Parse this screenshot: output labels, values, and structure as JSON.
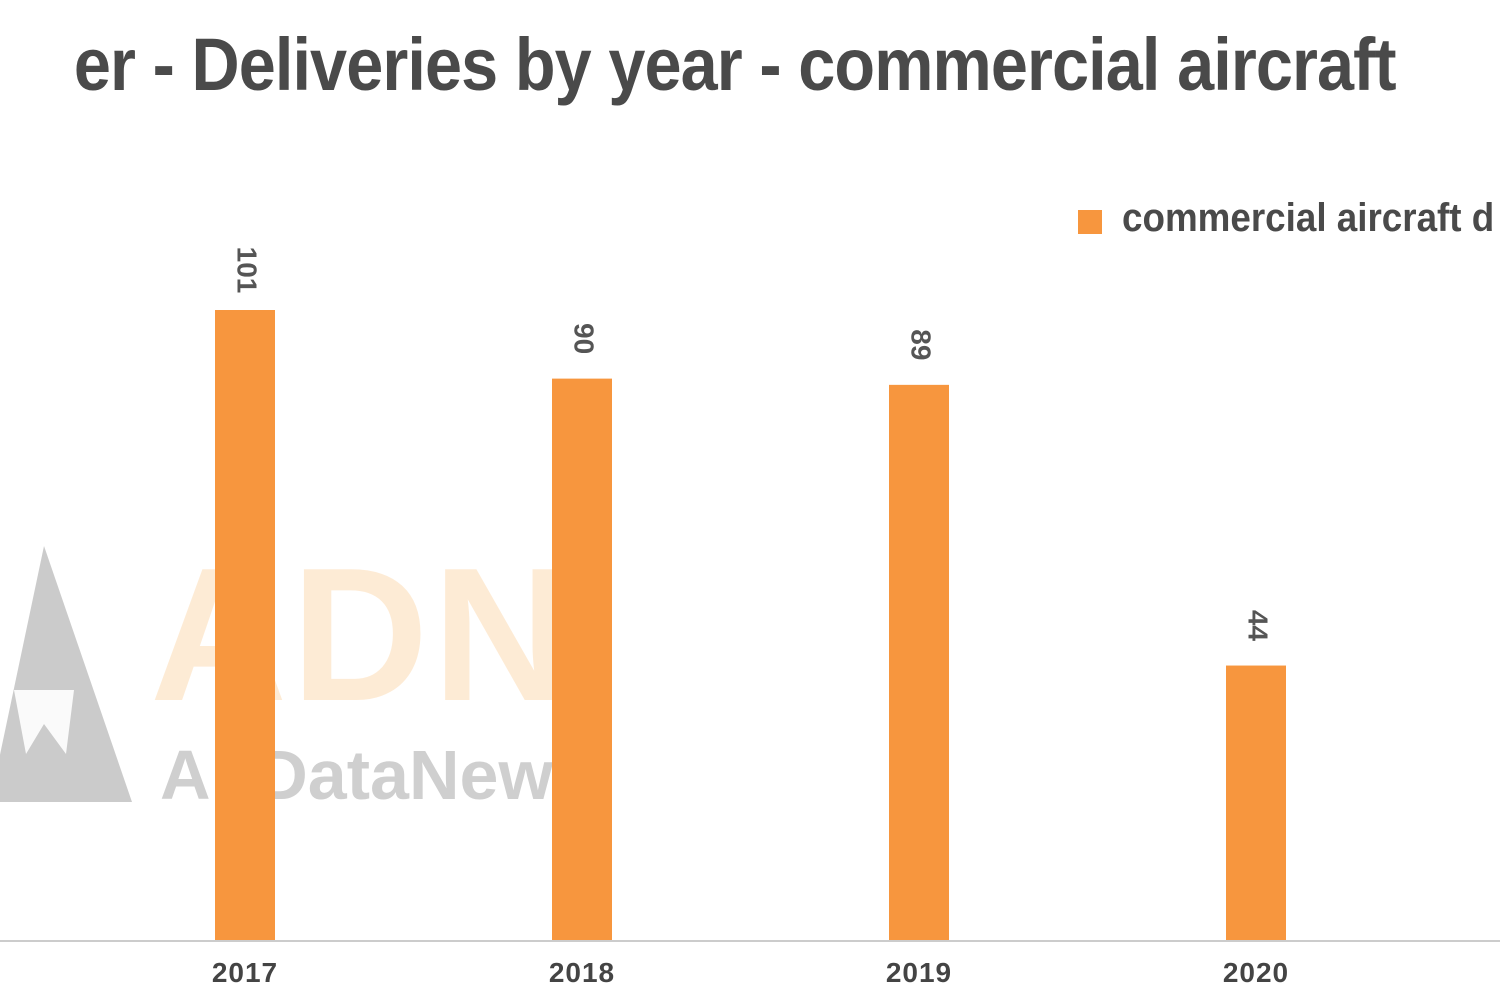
{
  "colors": {
    "bar": "#f7963e",
    "title": "#4a4a4a",
    "axis": "#cccccc",
    "tick_text": "#444444",
    "data_label": "#555555"
  },
  "watermark": {
    "logo": "airdatanews-logo",
    "brand": "ADN",
    "brand_sub": "AirDataNews"
  },
  "chart_data": {
    "type": "bar",
    "title": "er - Deliveries by year - commercial aircraft",
    "categories": [
      "2017",
      "2018",
      "2019",
      "2020"
    ],
    "series": [
      {
        "name": "commercial aircraft d",
        "values": [
          101,
          90,
          89,
          44
        ]
      }
    ],
    "data_labels": [
      "101",
      "90",
      "89",
      "44"
    ],
    "xlabel": "",
    "ylabel": "",
    "ylim": [
      0,
      101
    ],
    "grid": false,
    "legend_position": "top-right"
  }
}
